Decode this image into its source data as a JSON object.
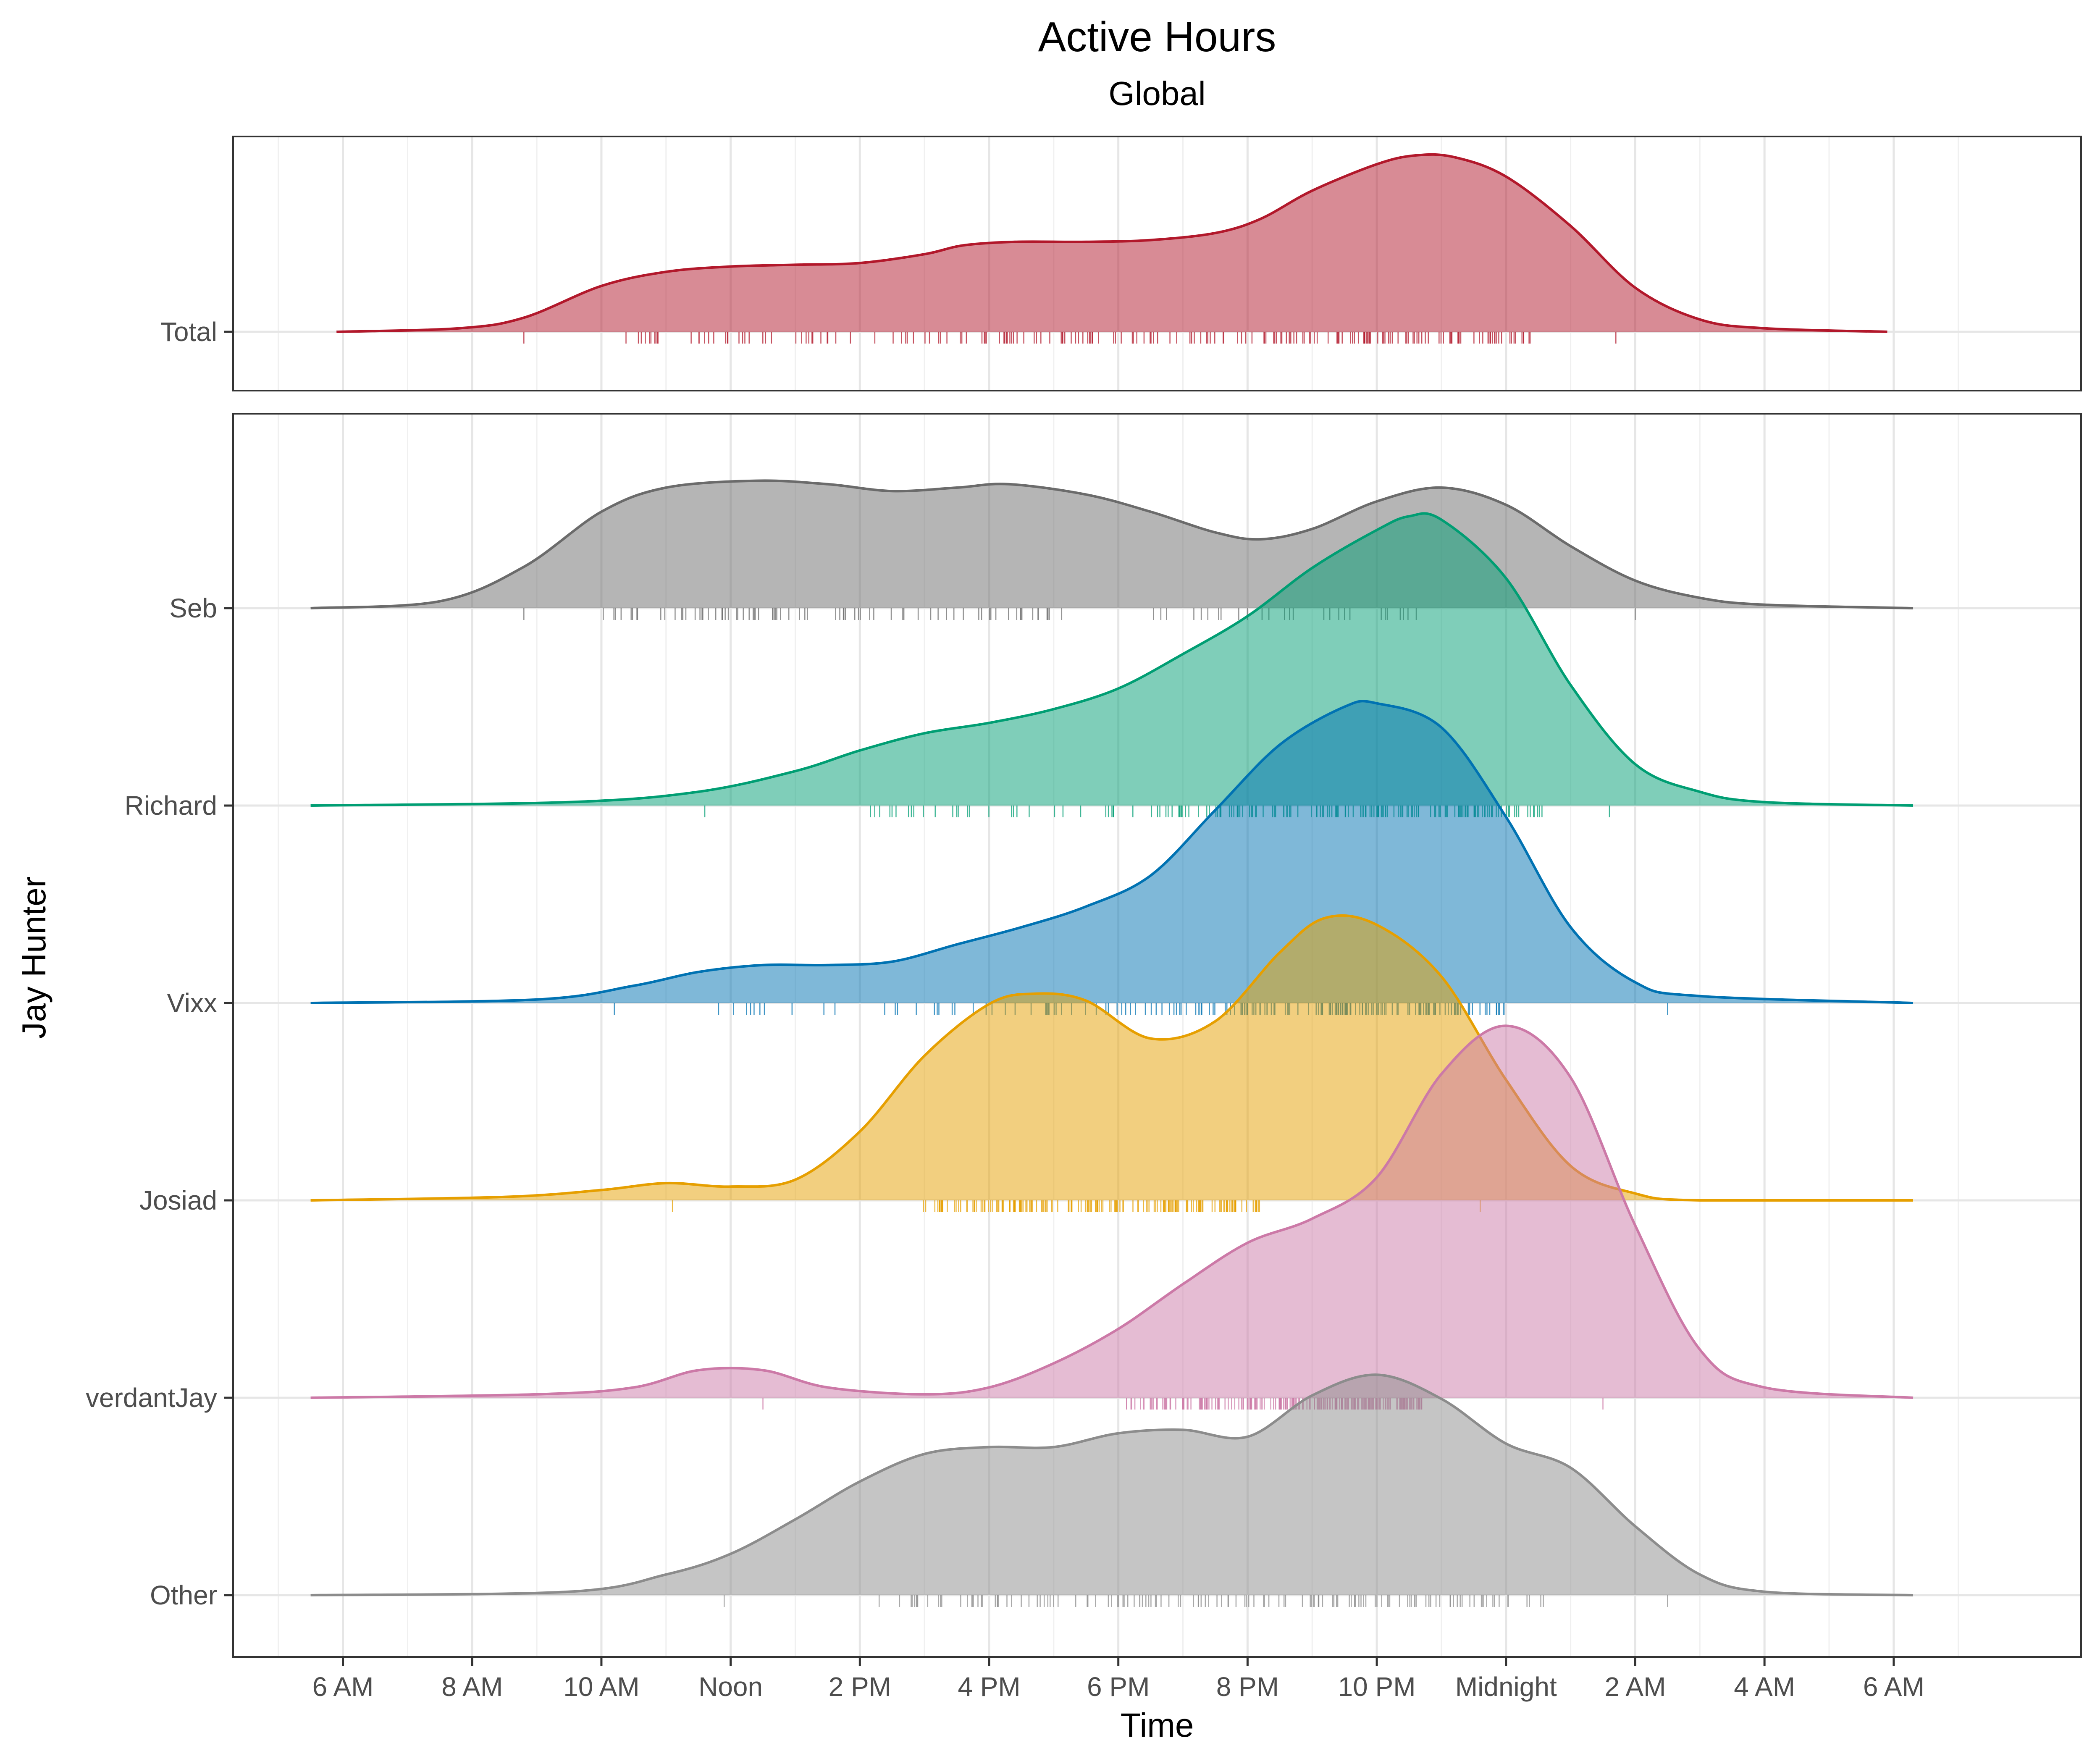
{
  "chart_data": {
    "type": "ridgeline-density",
    "title": "Active Hours",
    "subtitle": "Global",
    "xlabel": "Time",
    "ylabel": "Jay Hunter",
    "x_tick_labels": [
      "6 AM",
      "8 AM",
      "10 AM",
      "Noon",
      "2 PM",
      "4 PM",
      "6 PM",
      "8 PM",
      "10 PM",
      "Midnight",
      "2 AM",
      "4 AM",
      "6 AM"
    ],
    "x_tick_hours": [
      6,
      8,
      10,
      12,
      14,
      16,
      18,
      20,
      22,
      24,
      26,
      28,
      30
    ],
    "xlim_hours": [
      4.3,
      32.9
    ],
    "grid": true,
    "panels": [
      {
        "name": "global",
        "series": [
          {
            "name": "Total",
            "color": "#B2182B",
            "x_range": [
              5.9,
              29.9
            ],
            "peak_density": 1.0,
            "density": [
              [
                5.9,
                0.0
              ],
              [
                7.8,
                0.02
              ],
              [
                8.8,
                0.08
              ],
              [
                10.0,
                0.26
              ],
              [
                11.0,
                0.34
              ],
              [
                12.0,
                0.37
              ],
              [
                13.0,
                0.38
              ],
              [
                14.0,
                0.39
              ],
              [
                15.0,
                0.44
              ],
              [
                15.6,
                0.49
              ],
              [
                16.4,
                0.51
              ],
              [
                17.5,
                0.51
              ],
              [
                18.5,
                0.52
              ],
              [
                19.5,
                0.56
              ],
              [
                20.2,
                0.64
              ],
              [
                21.0,
                0.8
              ],
              [
                22.0,
                0.95
              ],
              [
                22.6,
                1.0
              ],
              [
                23.2,
                0.99
              ],
              [
                24.0,
                0.88
              ],
              [
                25.0,
                0.6
              ],
              [
                26.0,
                0.25
              ],
              [
                27.0,
                0.07
              ],
              [
                28.0,
                0.02
              ],
              [
                29.9,
                0.0
              ]
            ],
            "rug": [
              [
                8.8,
                25.7
              ],
              [
                10.0,
                24.4
              ]
            ]
          }
        ]
      },
      {
        "name": "players",
        "series": [
          {
            "name": "Seb",
            "color": "#6B6B6B",
            "x_range": [
              5.5,
              30.3
            ],
            "peak_density": 0.42,
            "density": [
              [
                5.5,
                0.0
              ],
              [
                7.5,
                0.02
              ],
              [
                8.8,
                0.12
              ],
              [
                10.0,
                0.28
              ],
              [
                11.0,
                0.35
              ],
              [
                12.4,
                0.37
              ],
              [
                13.5,
                0.36
              ],
              [
                14.5,
                0.34
              ],
              [
                15.5,
                0.35
              ],
              [
                16.3,
                0.36
              ],
              [
                17.5,
                0.33
              ],
              [
                18.5,
                0.28
              ],
              [
                19.5,
                0.22
              ],
              [
                20.2,
                0.2
              ],
              [
                21.0,
                0.23
              ],
              [
                22.0,
                0.31
              ],
              [
                23.0,
                0.35
              ],
              [
                24.0,
                0.3
              ],
              [
                25.0,
                0.18
              ],
              [
                26.0,
                0.08
              ],
              [
                27.0,
                0.03
              ],
              [
                28.0,
                0.01
              ],
              [
                30.3,
                0.0
              ]
            ],
            "rug": [
              [
                8.8,
                26.0
              ],
              [
                10.0,
                23.0
              ]
            ]
          },
          {
            "name": "Richard",
            "color": "#009E73",
            "x_range": [
              5.5,
              30.3
            ],
            "peak_density": 0.84,
            "density": [
              [
                5.5,
                0.0
              ],
              [
                9.5,
                0.01
              ],
              [
                11.5,
                0.04
              ],
              [
                13.0,
                0.1
              ],
              [
                14.0,
                0.16
              ],
              [
                15.0,
                0.21
              ],
              [
                16.0,
                0.24
              ],
              [
                17.0,
                0.28
              ],
              [
                18.0,
                0.34
              ],
              [
                19.0,
                0.44
              ],
              [
                20.0,
                0.55
              ],
              [
                21.0,
                0.69
              ],
              [
                22.0,
                0.8
              ],
              [
                22.5,
                0.84
              ],
              [
                23.0,
                0.83
              ],
              [
                24.0,
                0.66
              ],
              [
                25.0,
                0.35
              ],
              [
                26.0,
                0.12
              ],
              [
                27.0,
                0.04
              ],
              [
                28.0,
                0.01
              ],
              [
                30.3,
                0.0
              ]
            ],
            "rug": [
              [
                11.6,
                25.6
              ],
              [
                14.0,
                24.6
              ]
            ]
          },
          {
            "name": "Vixx",
            "color": "#0072B2",
            "x_range": [
              5.5,
              30.3
            ],
            "peak_density": 0.87,
            "density": [
              [
                5.5,
                0.0
              ],
              [
                9.0,
                0.01
              ],
              [
                10.5,
                0.05
              ],
              [
                11.5,
                0.09
              ],
              [
                12.5,
                0.11
              ],
              [
                13.5,
                0.11
              ],
              [
                14.5,
                0.12
              ],
              [
                15.5,
                0.17
              ],
              [
                16.5,
                0.22
              ],
              [
                17.5,
                0.28
              ],
              [
                18.5,
                0.37
              ],
              [
                19.5,
                0.56
              ],
              [
                20.5,
                0.75
              ],
              [
                21.5,
                0.86
              ],
              [
                22.0,
                0.87
              ],
              [
                23.0,
                0.8
              ],
              [
                24.0,
                0.54
              ],
              [
                25.0,
                0.22
              ],
              [
                26.0,
                0.06
              ],
              [
                27.0,
                0.02
              ],
              [
                30.3,
                0.0
              ]
            ],
            "rug": [
              [
                10.2,
                26.5
              ],
              [
                11.6,
                24.0
              ]
            ]
          },
          {
            "name": "Josiad",
            "color": "#E69F00",
            "x_range": [
              5.5,
              30.3
            ],
            "peak_density": 0.83,
            "density": [
              [
                5.5,
                0.0
              ],
              [
                8.5,
                0.01
              ],
              [
                10.0,
                0.03
              ],
              [
                11.0,
                0.05
              ],
              [
                12.0,
                0.04
              ],
              [
                13.0,
                0.06
              ],
              [
                14.0,
                0.2
              ],
              [
                15.0,
                0.42
              ],
              [
                16.0,
                0.57
              ],
              [
                16.7,
                0.6
              ],
              [
                17.5,
                0.58
              ],
              [
                18.5,
                0.47
              ],
              [
                19.5,
                0.52
              ],
              [
                20.5,
                0.72
              ],
              [
                21.2,
                0.82
              ],
              [
                22.0,
                0.8
              ],
              [
                23.0,
                0.65
              ],
              [
                24.0,
                0.35
              ],
              [
                25.0,
                0.1
              ],
              [
                26.0,
                0.02
              ],
              [
                27.0,
                0.0
              ],
              [
                30.3,
                0.0
              ]
            ],
            "rug": [
              [
                11.1,
                23.6
              ],
              [
                14.9,
                20.2
              ]
            ]
          },
          {
            "name": "verdantJay",
            "color": "#CC79A7",
            "x_range": [
              5.5,
              30.3
            ],
            "peak_density": 1.08,
            "density": [
              [
                5.5,
                0.0
              ],
              [
                9.0,
                0.01
              ],
              [
                10.5,
                0.03
              ],
              [
                11.5,
                0.08
              ],
              [
                12.5,
                0.08
              ],
              [
                13.5,
                0.03
              ],
              [
                15.0,
                0.01
              ],
              [
                16.0,
                0.03
              ],
              [
                17.0,
                0.1
              ],
              [
                18.0,
                0.2
              ],
              [
                19.0,
                0.33
              ],
              [
                20.0,
                0.45
              ],
              [
                21.0,
                0.52
              ],
              [
                22.0,
                0.64
              ],
              [
                23.0,
                0.94
              ],
              [
                24.0,
                1.08
              ],
              [
                25.0,
                0.93
              ],
              [
                26.0,
                0.5
              ],
              [
                27.0,
                0.14
              ],
              [
                28.0,
                0.03
              ],
              [
                30.3,
                0.0
              ]
            ],
            "rug": [
              [
                12.5,
                25.5
              ],
              [
                18.1,
                22.7
              ]
            ]
          },
          {
            "name": "Other",
            "color": "#8C8C8C",
            "x_range": [
              5.5,
              30.3
            ],
            "peak_density": 0.64,
            "density": [
              [
                5.5,
                0.0
              ],
              [
                9.5,
                0.01
              ],
              [
                11.0,
                0.06
              ],
              [
                12.0,
                0.12
              ],
              [
                13.0,
                0.22
              ],
              [
                14.0,
                0.33
              ],
              [
                15.0,
                0.41
              ],
              [
                16.0,
                0.43
              ],
              [
                17.0,
                0.43
              ],
              [
                18.0,
                0.47
              ],
              [
                19.0,
                0.48
              ],
              [
                20.0,
                0.46
              ],
              [
                21.0,
                0.58
              ],
              [
                22.0,
                0.64
              ],
              [
                23.0,
                0.57
              ],
              [
                24.0,
                0.44
              ],
              [
                25.0,
                0.37
              ],
              [
                26.0,
                0.2
              ],
              [
                27.0,
                0.06
              ],
              [
                28.0,
                0.01
              ],
              [
                30.3,
                0.0
              ]
            ],
            "rug": [
              [
                11.9,
                26.5
              ],
              [
                14.0,
                24.6
              ]
            ]
          }
        ]
      }
    ]
  }
}
